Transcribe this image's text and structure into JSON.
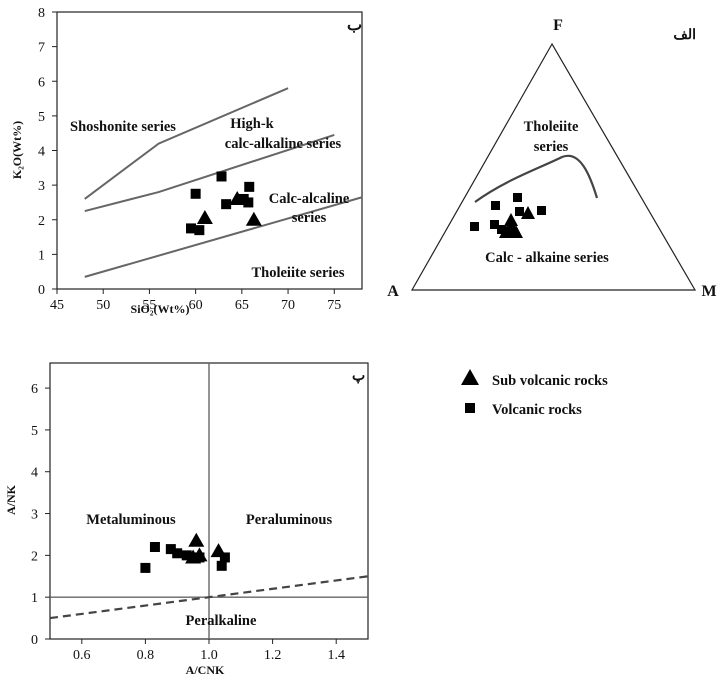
{
  "chart_data": [
    {
      "id": "tas",
      "type": "scatter",
      "panel_label": "ب",
      "xlabel": "SiO₂(Wt%)",
      "ylabel": "K₂O(Wt%)",
      "xlim": [
        45,
        78
      ],
      "ylim": [
        0,
        8
      ],
      "xticks": [
        45,
        50,
        55,
        60,
        65,
        70,
        75
      ],
      "yticks": [
        0,
        1,
        2,
        3,
        4,
        5,
        6,
        7,
        8
      ],
      "regions": [
        {
          "label": "Shoshonite series",
          "lines": [
            "Shoshonite series"
          ]
        },
        {
          "label": "High-k calc-alkaline series",
          "lines": [
            "High-k",
            "calc-alkaline series"
          ]
        },
        {
          "label": "Calc-alcaline series",
          "lines": [
            "Calc-alcaline",
            "series"
          ]
        },
        {
          "label": "Tholeiite series",
          "lines": [
            "Tholeiite series"
          ]
        }
      ],
      "boundaries": [
        [
          [
            48,
            2.6
          ],
          [
            56,
            4.2
          ],
          [
            70,
            5.8
          ]
        ],
        [
          [
            48,
            2.25
          ],
          [
            56,
            2.8
          ],
          [
            75,
            4.45
          ]
        ],
        [
          [
            48,
            0.35
          ],
          [
            78,
            2.65
          ]
        ]
      ],
      "series": [
        {
          "name": "Sub volcanic rocks",
          "marker": "triangle",
          "points": [
            [
              61,
              2.05
            ],
            [
              64.5,
              2.6
            ],
            [
              66.3,
              2.0
            ]
          ]
        },
        {
          "name": "Volcanic rocks",
          "marker": "square",
          "points": [
            [
              60,
              2.75
            ],
            [
              62.8,
              3.25
            ],
            [
              65.8,
              2.95
            ],
            [
              63.3,
              2.45
            ],
            [
              65.2,
              2.6
            ],
            [
              65.7,
              2.5
            ],
            [
              59.5,
              1.75
            ],
            [
              60.4,
              1.7
            ]
          ]
        }
      ]
    },
    {
      "id": "afm",
      "type": "ternary",
      "panel_label": "الف",
      "apices": {
        "top": "F",
        "left": "A",
        "right": "M"
      },
      "regions": [
        {
          "label": "Tholeiite series",
          "lines": [
            "Tholeiite",
            "series"
          ]
        },
        {
          "label": "Calc - alkaine series",
          "lines": [
            "Calc - alkaine series"
          ]
        }
      ],
      "series": [
        {
          "name": "Sub volcanic rocks",
          "marker": "triangle",
          "count": 6
        },
        {
          "name": "Volcanic rocks",
          "marker": "square",
          "count": 7
        }
      ]
    },
    {
      "id": "shand",
      "type": "scatter",
      "panel_label": "پ",
      "xlabel": "A/CNK",
      "ylabel": "A/NK",
      "xlim": [
        0.5,
        1.5
      ],
      "ylim": [
        0,
        6.6
      ],
      "xticks": [
        0.6,
        0.8,
        1.0,
        1.2,
        1.4
      ],
      "xtick_labels": [
        "0.6",
        "0.8",
        "1.0",
        "1.2",
        "1.4"
      ],
      "yticks": [
        0,
        1,
        2,
        3,
        4,
        5,
        6
      ],
      "regions": [
        {
          "label": "Metaluminous"
        },
        {
          "label": "Peraluminous"
        },
        {
          "label": "Peralkaline"
        }
      ],
      "series": [
        {
          "name": "Sub volcanic rocks",
          "marker": "triangle",
          "points": [
            [
              0.96,
              2.35
            ],
            [
              0.97,
              2.0
            ],
            [
              1.03,
              2.1
            ],
            [
              0.95,
              1.95
            ]
          ]
        },
        {
          "name": "Volcanic rocks",
          "marker": "square",
          "points": [
            [
              0.8,
              1.7
            ],
            [
              0.83,
              2.2
            ],
            [
              0.88,
              2.15
            ],
            [
              0.9,
              2.05
            ],
            [
              0.93,
              2.0
            ],
            [
              0.97,
              1.95
            ],
            [
              1.05,
              1.95
            ],
            [
              1.04,
              1.75
            ]
          ]
        }
      ]
    }
  ],
  "legend": [
    {
      "label": "Sub volcanic rocks",
      "marker": "triangle"
    },
    {
      "label": "Volcanic rocks",
      "marker": "square"
    }
  ]
}
